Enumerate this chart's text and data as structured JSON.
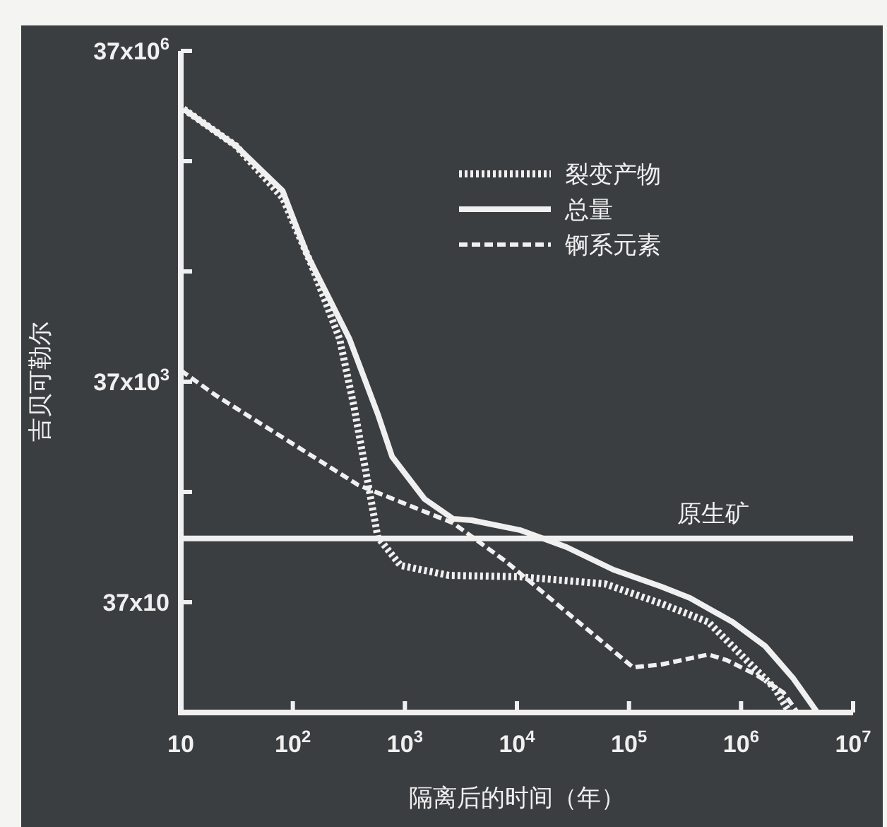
{
  "chart_data": {
    "type": "line",
    "xlabel": "隔离后的时间（年）",
    "ylabel": "吉贝可勒尔",
    "log": "xy",
    "legend": "top right",
    "xlim": [
      10,
      10000000
    ],
    "xticks": [
      10,
      {
        "value": 100,
        "label": "10$^{2}$"
      },
      {
        "value": 1000,
        "label": "10$^{3}$"
      },
      {
        "value": 10000,
        "label": "10$^{4}$"
      },
      {
        "value": 100000,
        "label": "10$^{5}$"
      },
      {
        "value": 1000000,
        "label": "10$^{6}$"
      },
      {
        "value": 10000000,
        "label": "10$^{7}$"
      }
    ],
    "ylim": [
      37,
      37000000
    ],
    "yticks": [
      {
        "value": 370,
        "label": "37x10"
      },
      {
        "value": 3700,
        "label": null
      },
      {
        "value": 37000,
        "label": "37x10$^{3}$"
      },
      {
        "value": 370000,
        "label": null
      },
      {
        "value": 3700000,
        "label": null
      },
      {
        "value": 37000000,
        "label": "37x10$^{6}$"
      }
    ],
    "ref_lines": [
      {
        "axis": "y",
        "value": 1400,
        "label": "原生矿",
        "color": "#f0f0f0",
        "line_style": "solid"
      }
    ],
    "series": [
      {
        "name": "裂变产物",
        "color": "#f0f0f0",
        "line_style": "dotted",
        "x": [
          10.6,
          31,
          81,
          146,
          262,
          350,
          574,
          916,
          2470,
          10600,
          61000,
          195000,
          510000,
          1120000,
          2010000,
          2700000
        ],
        "values": [
          11000000,
          5100000,
          1720000,
          429000,
          90000,
          22400,
          1440,
          797,
          649,
          629,
          543,
          359,
          245,
          110,
          61,
          37
        ]
      },
      {
        "name": "总量",
        "color": "#f0f0f0",
        "line_style": "solid",
        "x": [
          10.6,
          31,
          81,
          134,
          321,
          574,
          769,
          1500,
          2690,
          3940,
          10600,
          27700,
          72600,
          195000,
          350000,
          840000,
          1640000,
          2940000,
          4800000
        ],
        "values": [
          11000000,
          5100000,
          1990000,
          527000,
          90000,
          18800,
          7740,
          3190,
          2110,
          2050,
          1670,
          1170,
          730,
          512,
          404,
          245,
          148,
          75,
          37
        ]
      },
      {
        "name": "锕系元素",
        "color": "#f0f0f0",
        "line_style": "dashed",
        "x": [
          10,
          20.7,
          382,
          2690,
          7930,
          27700,
          109000,
          195000,
          510000,
          750000,
          1340000,
          2400000,
          3200000
        ],
        "values": [
          46900,
          27600,
          4290,
          1930,
          871,
          301,
          95,
          101,
          124,
          110,
          82,
          56,
          37
        ]
      }
    ]
  }
}
